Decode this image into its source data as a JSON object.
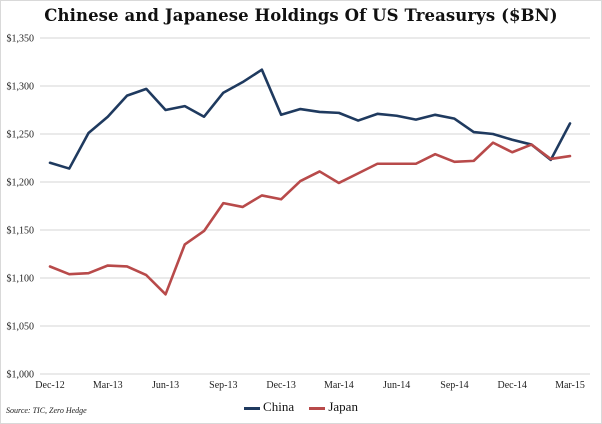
{
  "chart_data": {
    "type": "line",
    "title": "Chinese and Japanese Holdings Of US Treasurys ($BN)",
    "source": "Source: TIC, Zero Hedge",
    "y_ticks": [
      "$1,000",
      "$1,050",
      "$1,100",
      "$1,150",
      "$1,200",
      "$1,250",
      "$1,300",
      "$1,350"
    ],
    "ylim": [
      1000,
      1350
    ],
    "x_ticks": [
      "Dec-12",
      "Mar-13",
      "Jun-13",
      "Sep-13",
      "Dec-13",
      "Mar-14",
      "Jun-14",
      "Sep-14",
      "Dec-14",
      "Mar-15"
    ],
    "x_tick_months": [
      "2012-12",
      "2013-03",
      "2013-06",
      "2013-09",
      "2013-12",
      "2014-03",
      "2014-06",
      "2014-09",
      "2014-12",
      "2015-03"
    ],
    "x": [
      "2012-12",
      "2013-01",
      "2013-02",
      "2013-03",
      "2013-04",
      "2013-05",
      "2013-06",
      "2013-07",
      "2013-08",
      "2013-09",
      "2013-10",
      "2013-11",
      "2013-12",
      "2014-01",
      "2014-02",
      "2014-03",
      "2014-04",
      "2014-05",
      "2014-06",
      "2014-07",
      "2014-08",
      "2014-09",
      "2014-10",
      "2014-11",
      "2014-12",
      "2015-01",
      "2015-02",
      "2015-03"
    ],
    "grid": "horizontal",
    "legend": "bottom",
    "series": [
      {
        "name": "China",
        "color": "#1f3a5f",
        "values": [
          1220,
          1214,
          1251,
          1268,
          1290,
          1297,
          1275,
          1279,
          1268,
          1293,
          1304,
          1317,
          1270,
          1276,
          1273,
          1272,
          1264,
          1271,
          1269,
          1265,
          1270,
          1266,
          1252,
          1250,
          1244,
          1239,
          1223,
          1261
        ]
      },
      {
        "name": "Japan",
        "color": "#b84a4a",
        "values": [
          1112,
          1104,
          1105,
          1113,
          1112,
          1103,
          1083,
          1135,
          1149,
          1178,
          1174,
          1186,
          1182,
          1201,
          1211,
          1199,
          1209,
          1219,
          1219,
          1219,
          1229,
          1221,
          1222,
          1241,
          1231,
          1239,
          1224,
          1227
        ]
      }
    ]
  }
}
